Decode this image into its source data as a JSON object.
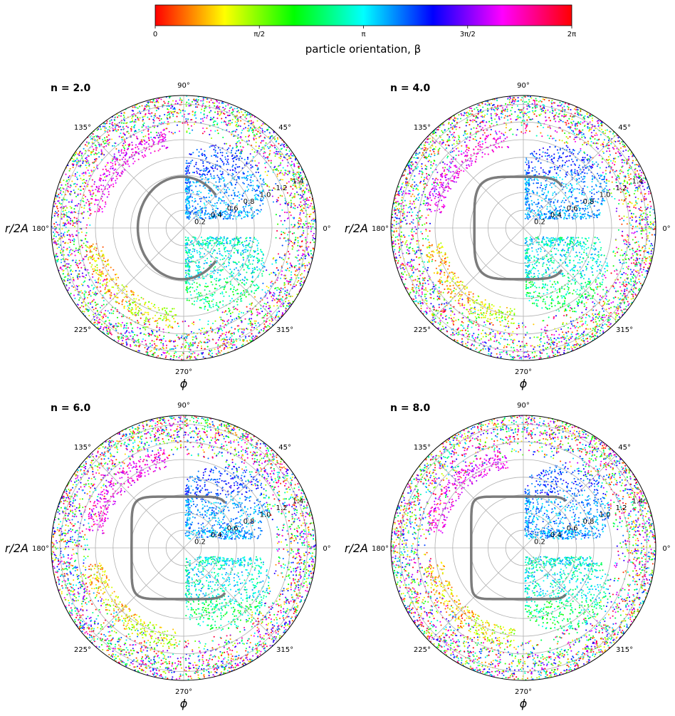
{
  "colorbar": {
    "label": "particle orientation, β",
    "tick_labels": [
      "0",
      "π/2",
      "π",
      "3π/2",
      "2π"
    ],
    "range": [
      0,
      6.2832
    ],
    "colormap": "hsv"
  },
  "chart_data": [
    {
      "type": "scatter",
      "projection": "polar",
      "title": "n = 2.0",
      "n": 2.0,
      "xlabel": "ϕ",
      "ylabel": "r/2A",
      "theta_tick_labels": [
        "0°",
        "45°",
        "90°",
        "135°",
        "180°",
        "225°",
        "270°",
        "315°"
      ],
      "r_tick_labels": [
        "0.2",
        "0.4",
        "0.6",
        "0.8",
        "1.0",
        "1.2",
        "1.4"
      ],
      "r_ticks": [
        0.2,
        0.4,
        0.6,
        0.8,
        1.0,
        1.2,
        1.4
      ],
      "rlim": [
        0,
        1.5
      ],
      "r_label_angle_deg": 22.5,
      "grid": true,
      "color_variable": "particle orientation, β",
      "particle_outline": "superellipse",
      "regions": [
        {
          "name": "outer annulus",
          "r_range": [
            1.2,
            1.5
          ],
          "theta_range_deg": [
            0,
            360
          ],
          "beta": "uniform 0–2π"
        },
        {
          "name": "upper right lobe",
          "r_range": [
            0.0,
            0.95
          ],
          "theta_range_deg": [
            0,
            90
          ],
          "beta": "≈ 3.1–4.0 (cyan–blue)"
        },
        {
          "name": "lower right lobe",
          "r_range": [
            0.0,
            0.95
          ],
          "theta_range_deg": [
            270,
            360
          ],
          "beta": "≈ 2.3–3.5 (green–cyan)"
        },
        {
          "name": "upper left arc",
          "r_range": [
            0.9,
            1.15
          ],
          "theta_range_deg": [
            100,
            170
          ],
          "beta": "≈ 4.8–5.7 (magenta)"
        },
        {
          "name": "lower left arc",
          "r_range": [
            0.9,
            1.15
          ],
          "theta_range_deg": [
            190,
            265
          ],
          "beta": "≈ 0.3–1.5 (orange–yellow)"
        }
      ]
    },
    {
      "type": "scatter",
      "projection": "polar",
      "title": "n = 4.0",
      "n": 4.0,
      "xlabel": "ϕ",
      "ylabel": "r/2A",
      "theta_tick_labels": [
        "0°",
        "45°",
        "90°",
        "135°",
        "180°",
        "225°",
        "270°",
        "315°"
      ],
      "r_tick_labels": [
        "0.2",
        "0.4",
        "0.6",
        "0.8",
        "1.0",
        "1.2",
        "1.4"
      ],
      "r_ticks": [
        0.2,
        0.4,
        0.6,
        0.8,
        1.0,
        1.2,
        1.4
      ],
      "rlim": [
        0,
        1.5
      ],
      "r_label_angle_deg": 22.5,
      "grid": true,
      "color_variable": "particle orientation, β",
      "particle_outline": "superellipse"
    },
    {
      "type": "scatter",
      "projection": "polar",
      "title": "n = 6.0",
      "n": 6.0,
      "xlabel": "ϕ",
      "ylabel": "r/2A",
      "theta_tick_labels": [
        "0°",
        "45°",
        "90°",
        "135°",
        "180°",
        "225°",
        "270°",
        "315°"
      ],
      "r_tick_labels": [
        "0.2",
        "0.4",
        "0.6",
        "0.8",
        "1.0",
        "1.2",
        "1.4"
      ],
      "r_ticks": [
        0.2,
        0.4,
        0.6,
        0.8,
        1.0,
        1.2,
        1.4
      ],
      "rlim": [
        0,
        1.5
      ],
      "r_label_angle_deg": 22.5,
      "grid": true,
      "color_variable": "particle orientation, β",
      "particle_outline": "superellipse"
    },
    {
      "type": "scatter",
      "projection": "polar",
      "title": "n = 8.0",
      "n": 8.0,
      "xlabel": "ϕ",
      "ylabel": "r/2A",
      "theta_tick_labels": [
        "0°",
        "45°",
        "90°",
        "135°",
        "180°",
        "225°",
        "270°",
        "315°"
      ],
      "r_tick_labels": [
        "0.2",
        "0.4",
        "0.6",
        "0.8",
        "1.0",
        "1.2",
        "1.4"
      ],
      "r_ticks": [
        0.2,
        0.4,
        0.6,
        0.8,
        1.0,
        1.2,
        1.4
      ],
      "rlim": [
        0,
        1.5
      ],
      "r_label_angle_deg": 22.5,
      "grid": true,
      "color_variable": "particle orientation, β",
      "particle_outline": "superellipse"
    }
  ]
}
